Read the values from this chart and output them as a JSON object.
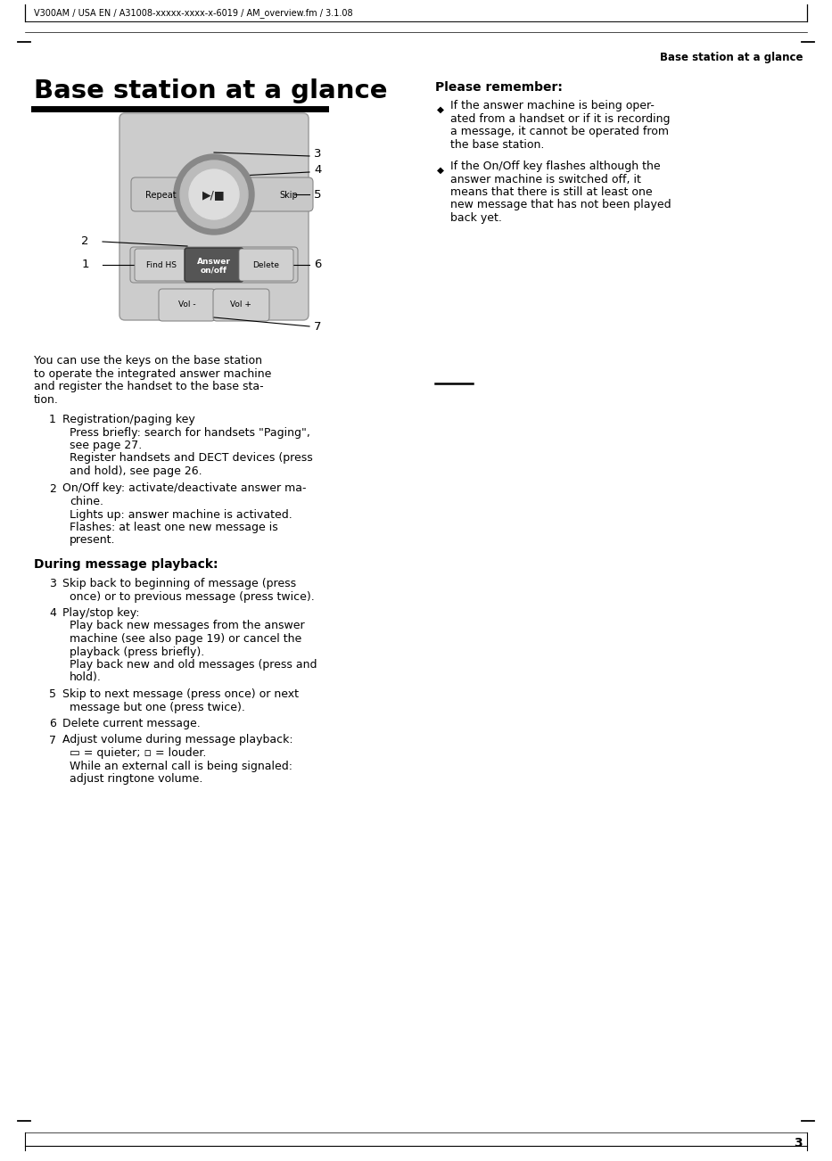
{
  "page_bg": "#ffffff",
  "header_text": "V300AM / USA EN / A31008-xxxxx-xxxx-x-6019 / AM_overview.fm / 3.1.08",
  "header_right_title": "Base station at a glance",
  "main_title": "Base station at a glance",
  "please_remember_title": "Please remember:",
  "bullet1_line1": "If the answer machine is being oper-",
  "bullet1_line2": "ated from a handset or if it is recording",
  "bullet1_line3": "a message, it cannot be operated from",
  "bullet1_line4": "the base station.",
  "bullet2_line1": "If the On/Off key flashes although the",
  "bullet2_line2": "answer machine is switched off, it",
  "bullet2_line3": "means that there is still at least one",
  "bullet2_line4": "new message that has not been played",
  "bullet2_line5": "back yet.",
  "intro_line1": "You can use the keys on the base station",
  "intro_line2": "to operate the integrated answer machine",
  "intro_line3": "and register the handset to the base sta-",
  "intro_line4": "tion.",
  "during_playback_title": "During message playback:",
  "page_number": "3",
  "device_labels": {
    "repeat": "Repeat",
    "skip": "Skip",
    "find_hs": "Find HS",
    "answer_onoff_1": "Answer",
    "answer_onoff_2": "on/off",
    "delete": "Delete",
    "vol_minus": "Vol -",
    "vol_plus": "Vol +"
  }
}
